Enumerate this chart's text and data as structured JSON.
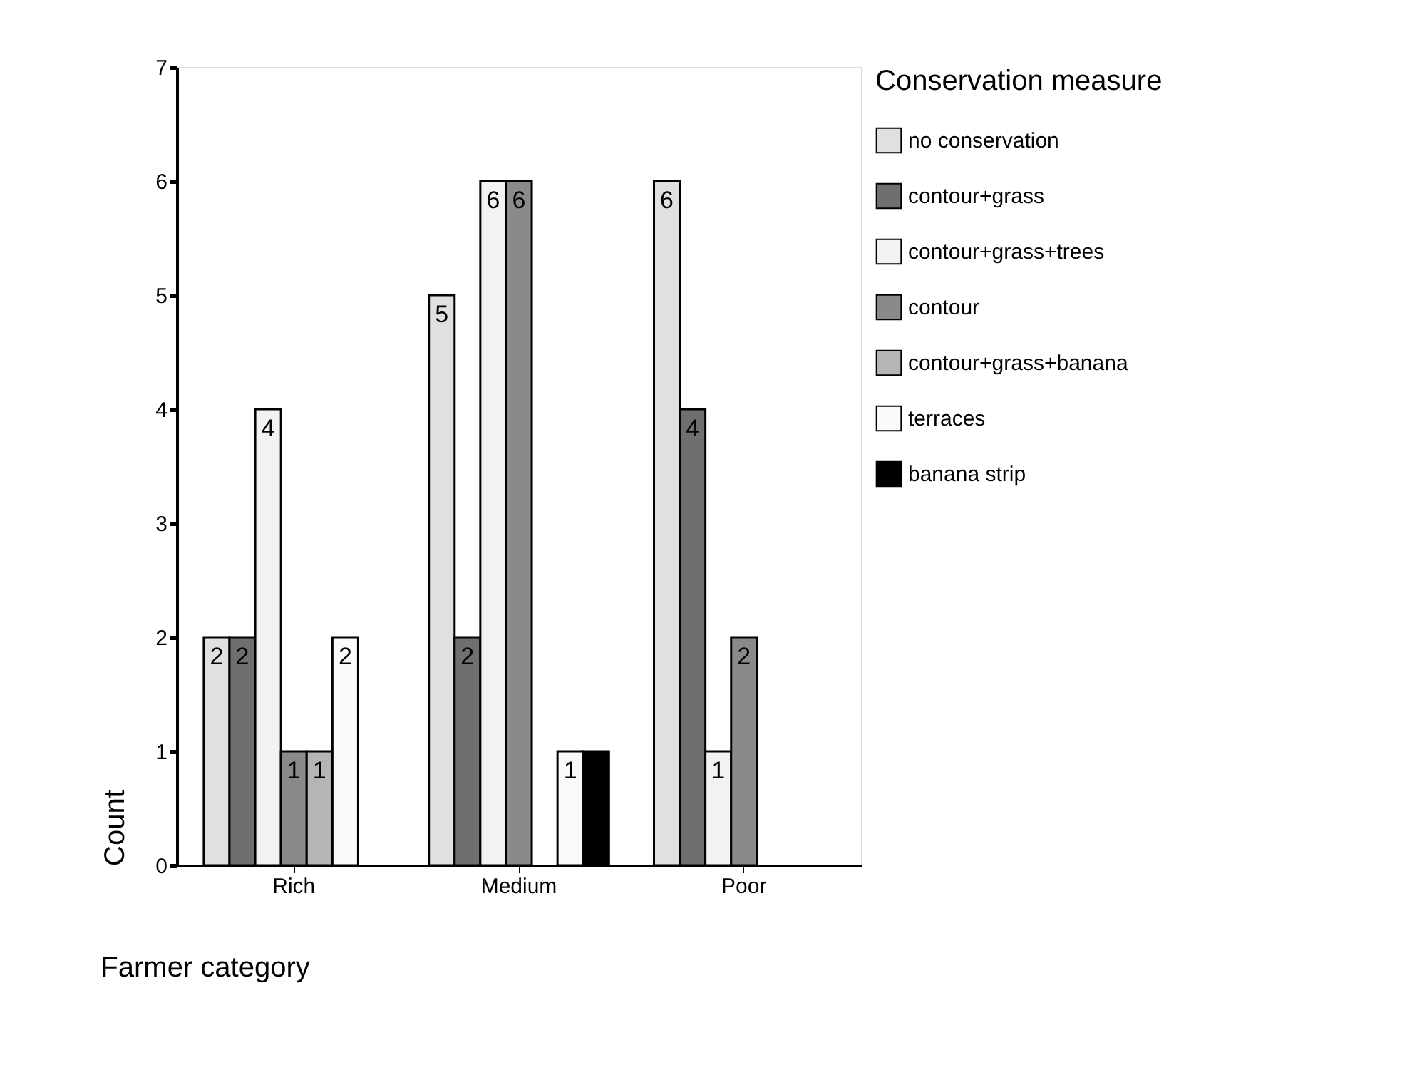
{
  "chart_data": {
    "type": "bar",
    "xlabel": "Farmer category",
    "ylabel": "Count",
    "legend_title": "Conservation measure",
    "legend": "right",
    "categories": [
      "Rich",
      "Medium",
      "Poor"
    ],
    "ylim": [
      0,
      7
    ],
    "yticks": [
      0,
      1,
      2,
      3,
      4,
      5,
      6,
      7
    ],
    "grid": false,
    "series": [
      {
        "name": "no conservation",
        "color": "#e0e0e0",
        "values": [
          2,
          5,
          6
        ],
        "value_labels": [
          "2",
          "5",
          "6"
        ]
      },
      {
        "name": "contour+grass",
        "color": "#6f6f6f",
        "values": [
          2,
          2,
          4
        ],
        "value_labels": [
          "2",
          "2",
          "4"
        ]
      },
      {
        "name": "contour+grass+trees",
        "color": "#f2f2f2",
        "values": [
          4,
          6,
          1
        ],
        "value_labels": [
          "4",
          "6",
          "1"
        ]
      },
      {
        "name": "contour",
        "color": "#8a8a8a",
        "values": [
          1,
          6,
          2
        ],
        "value_labels": [
          "1",
          "6",
          "2"
        ]
      },
      {
        "name": "contour+grass+banana",
        "color": "#b5b5b5",
        "values": [
          1,
          null,
          null
        ],
        "value_labels": [
          "1",
          null,
          null
        ]
      },
      {
        "name": "terraces",
        "color": "#fafafa",
        "values": [
          2,
          1,
          null
        ],
        "value_labels": [
          "2",
          "1",
          null
        ]
      },
      {
        "name": "banana strip",
        "color": "#000000",
        "values": [
          null,
          1,
          null
        ],
        "value_labels": [
          null,
          null,
          null
        ]
      }
    ]
  }
}
